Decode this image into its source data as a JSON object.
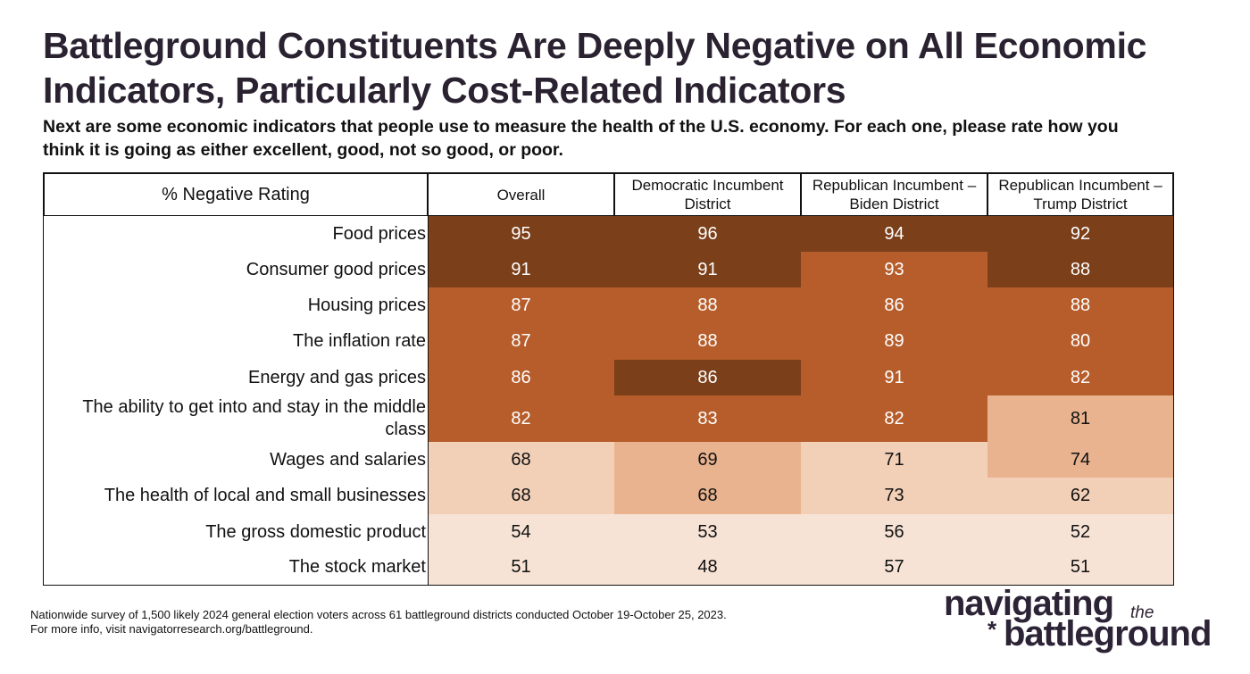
{
  "title": [
    "Battleground Constituents Are Deeply Negative on All Economic",
    "Indicators, Particularly Cost-Related Indicators"
  ],
  "subtitle": [
    "Next are some economic indicators that people use to measure the health of the U.S. economy. For each one, please rate how you",
    "think it is going as either excellent, good, not so good, or poor."
  ],
  "table": {
    "header": [
      "% Negative Rating",
      "Overall",
      "Democratic Incumbent District",
      "Republican Incumbent – Biden District",
      "Republican Incumbent – Trump District"
    ],
    "rows": [
      {
        "label": "Food prices",
        "values": [
          95,
          96,
          94,
          92
        ],
        "colors": [
          "#7b3f1a",
          "#7b3f1a",
          "#7b3f1a",
          "#7b3f1a"
        ]
      },
      {
        "label": "Consumer good prices",
        "values": [
          91,
          91,
          93,
          88
        ],
        "colors": [
          "#7b3f1a",
          "#7b3f1a",
          "#b65d2b",
          "#7b3f1a"
        ]
      },
      {
        "label": "Housing prices",
        "values": [
          87,
          88,
          86,
          88
        ],
        "colors": [
          "#b65d2b",
          "#b65d2b",
          "#b65d2b",
          "#b65d2b"
        ]
      },
      {
        "label": "The inflation rate",
        "values": [
          87,
          88,
          89,
          80
        ],
        "colors": [
          "#b65d2b",
          "#b65d2b",
          "#b65d2b",
          "#b65d2b"
        ]
      },
      {
        "label": "Energy and gas prices",
        "values": [
          86,
          86,
          91,
          82
        ],
        "colors": [
          "#b65d2b",
          "#7b3f1a",
          "#b65d2b",
          "#b65d2b"
        ]
      },
      {
        "label": "The ability to get into and stay in the middle class",
        "values": [
          82,
          83,
          82,
          81
        ],
        "colors": [
          "#b65d2b",
          "#b65d2b",
          "#b65d2b",
          "#e9b38f"
        ]
      },
      {
        "label": "Wages and salaries",
        "values": [
          68,
          69,
          71,
          74
        ],
        "colors": [
          "#f2d0b8",
          "#e9b38f",
          "#f2d0b8",
          "#e9b38f"
        ]
      },
      {
        "label": "The health of local and small businesses",
        "values": [
          68,
          68,
          73,
          62
        ],
        "colors": [
          "#f2d0b8",
          "#e9b38f",
          "#f2d0b8",
          "#f2d0b8"
        ]
      },
      {
        "label": "The gross domestic product",
        "values": [
          54,
          53,
          56,
          52
        ],
        "colors": [
          "#f7e3d6",
          "#f7e3d6",
          "#f7e3d6",
          "#f7e3d6"
        ]
      },
      {
        "label": "The stock market",
        "values": [
          51,
          48,
          57,
          51
        ],
        "colors": [
          "#f7e3d6",
          "#f7e3d6",
          "#f7e3d6",
          "#f7e3d6"
        ]
      }
    ]
  },
  "footnote": [
    "Nationwide survey of 1,500 likely 2024 general election voters across 61 battleground districts conducted October 19-October 25, 2023.",
    "For more info, visit navigatorresearch.org/battleground."
  ],
  "logo": {
    "top": "navigating",
    "small": "the",
    "star": "*",
    "bottom": "battleground"
  }
}
